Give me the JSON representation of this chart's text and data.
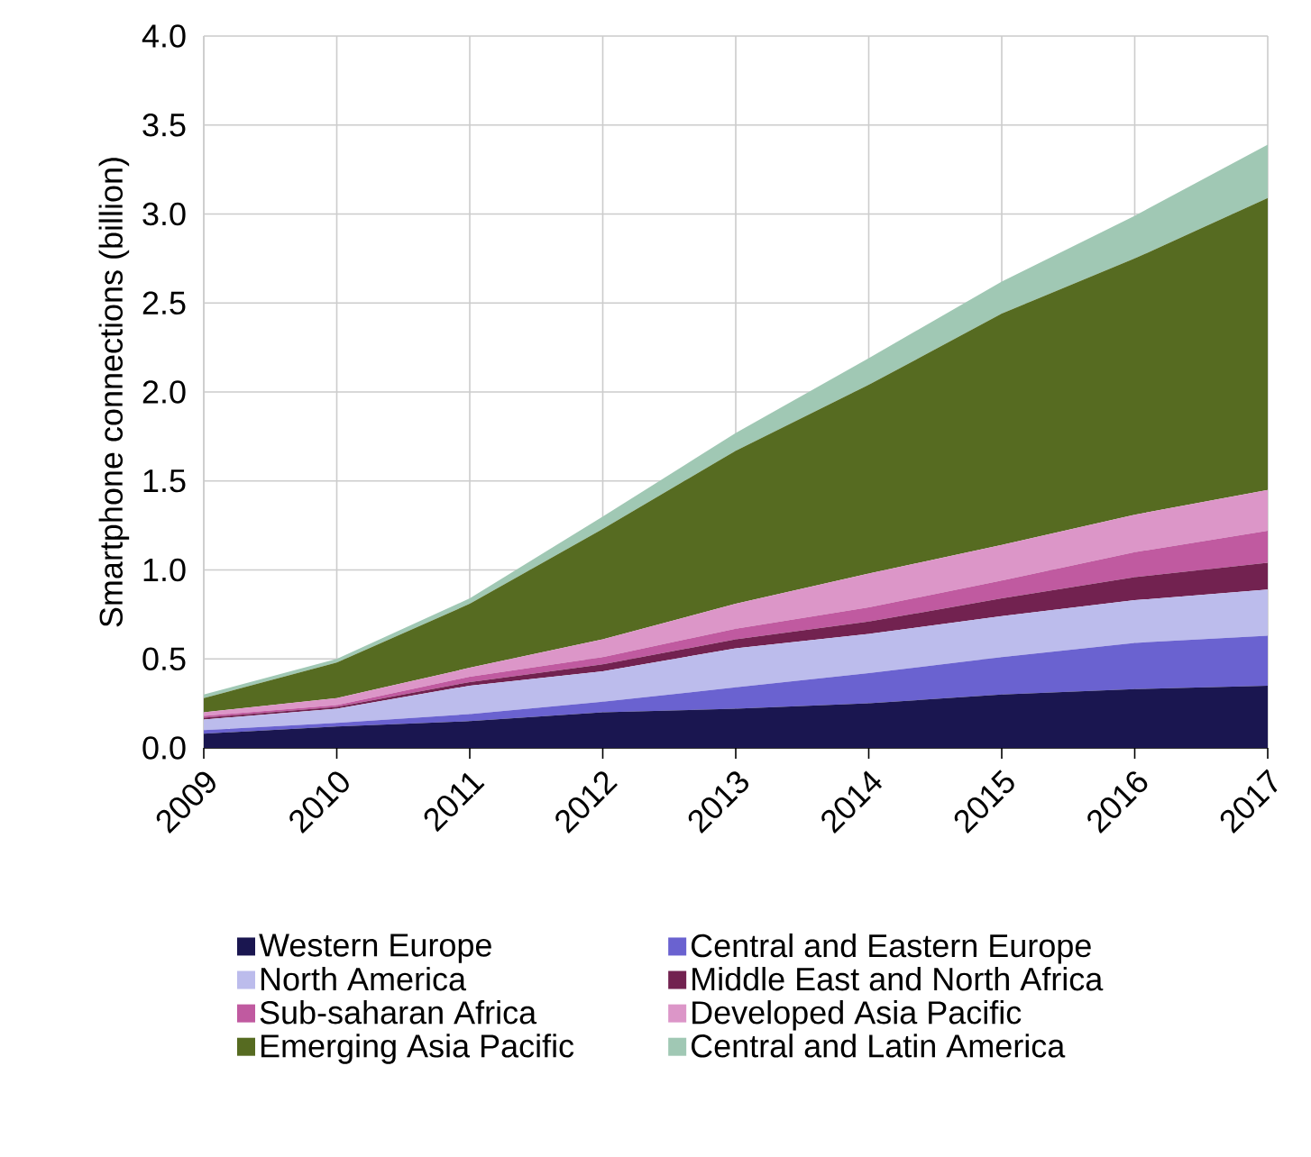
{
  "chart_data": {
    "type": "area",
    "stacked": true,
    "ylabel": "Smartphone connections (billion)",
    "x": [
      2009,
      2010,
      2011,
      2012,
      2013,
      2014,
      2015,
      2016,
      2017
    ],
    "xlim": [
      2009,
      2017
    ],
    "xticks": [
      2009,
      2010,
      2011,
      2012,
      2013,
      2014,
      2015,
      2016,
      2017
    ],
    "ylim": [
      0,
      4
    ],
    "yticks": [
      {
        "value": 0,
        "label": "0.0"
      },
      {
        "value": 0.5,
        "label": "0.5"
      },
      {
        "value": 1,
        "label": "1.0"
      },
      {
        "value": 1.5,
        "label": "1.5"
      },
      {
        "value": 2,
        "label": "2.0"
      },
      {
        "value": 2.5,
        "label": "2.5"
      },
      {
        "value": 3,
        "label": "3.0"
      },
      {
        "value": 3.5,
        "label": "3.5"
      },
      {
        "value": 4,
        "label": "4.0"
      }
    ],
    "grid": true,
    "legend": "bottom",
    "series": [
      {
        "name": "Western Europe",
        "color": "#1a1650",
        "values": [
          0.08,
          0.12,
          0.15,
          0.2,
          0.22,
          0.25,
          0.3,
          0.33,
          0.35
        ]
      },
      {
        "name": "Central and Eastern Europe",
        "color": "#6a62d0",
        "values": [
          0.02,
          0.02,
          0.04,
          0.06,
          0.12,
          0.17,
          0.21,
          0.26,
          0.28
        ]
      },
      {
        "name": "North America",
        "color": "#bcbcec",
        "values": [
          0.06,
          0.08,
          0.16,
          0.17,
          0.22,
          0.22,
          0.23,
          0.24,
          0.26
        ]
      },
      {
        "name": "Middle East and North Africa",
        "color": "#722250",
        "values": [
          0.01,
          0.01,
          0.02,
          0.04,
          0.05,
          0.07,
          0.1,
          0.13,
          0.15
        ]
      },
      {
        "name": "Sub-saharan Africa",
        "color": "#c05aa0",
        "values": [
          0.01,
          0.01,
          0.03,
          0.04,
          0.06,
          0.08,
          0.1,
          0.14,
          0.18
        ]
      },
      {
        "name": "Developed Asia Pacific",
        "color": "#dc96c8",
        "values": [
          0.02,
          0.04,
          0.05,
          0.1,
          0.14,
          0.19,
          0.2,
          0.21,
          0.23
        ]
      },
      {
        "name": "Emerging Asia Pacific",
        "color": "#566b21",
        "values": [
          0.08,
          0.2,
          0.36,
          0.62,
          0.86,
          1.06,
          1.3,
          1.44,
          1.64
        ]
      },
      {
        "name": "Central and Latin America",
        "color": "#a0c8b4",
        "values": [
          0.02,
          0.02,
          0.03,
          0.07,
          0.1,
          0.15,
          0.18,
          0.24,
          0.3
        ]
      }
    ]
  }
}
